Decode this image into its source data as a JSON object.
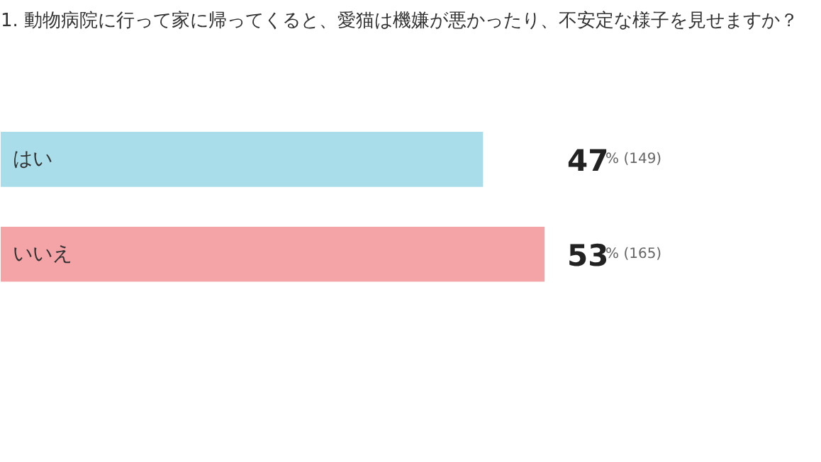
{
  "chart_data": {
    "type": "bar",
    "orientation": "horizontal",
    "title": "1. 動物病院に行って家に帰ってくると、愛猫は機嫌が悪かったり、不安定な様子を見せますか？",
    "categories": [
      "はい",
      "いいえ"
    ],
    "values": [
      47,
      53
    ],
    "colors": [
      "#a8dde9",
      "#f4a3a6"
    ],
    "value_labels": [
      "47% (149)",
      "53% (165)"
    ],
    "tick_labels": false,
    "grid": false
  }
}
